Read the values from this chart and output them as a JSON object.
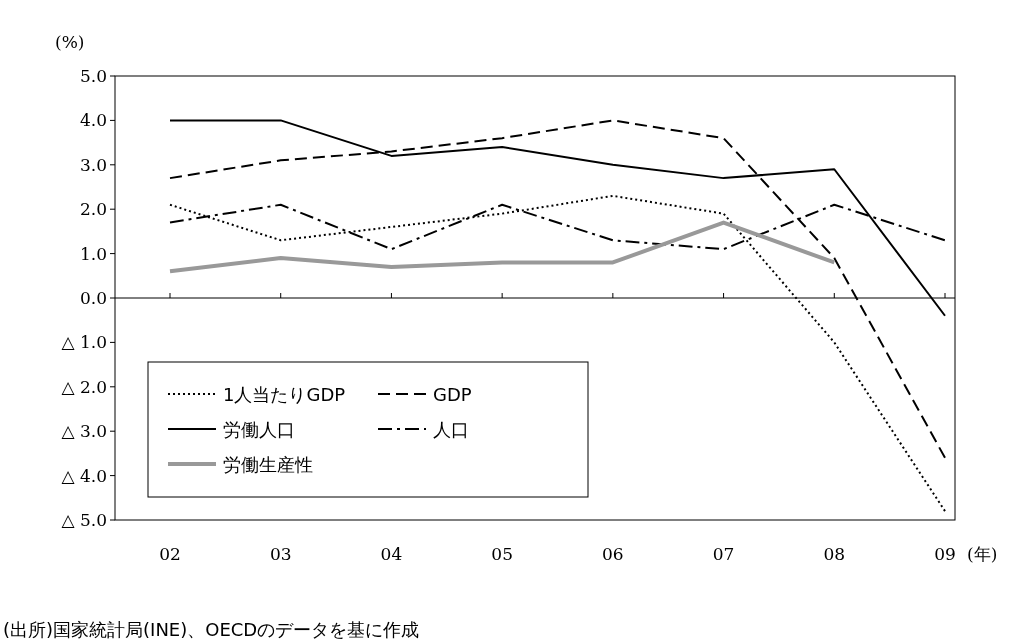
{
  "chart_data": {
    "type": "line",
    "ylabel": "(%)",
    "xlabel": "(年)",
    "categories": [
      "02",
      "03",
      "04",
      "05",
      "06",
      "07",
      "08",
      "09"
    ],
    "ylim": [
      -5,
      5
    ],
    "yticks": [
      {
        "value": 5,
        "label": "5.0"
      },
      {
        "value": 4,
        "label": "4.0"
      },
      {
        "value": 3,
        "label": "3.0"
      },
      {
        "value": 2,
        "label": "2.0"
      },
      {
        "value": 1,
        "label": "1.0"
      },
      {
        "value": 0,
        "label": "0.0"
      },
      {
        "value": -1,
        "label": "△ 1.0"
      },
      {
        "value": -2,
        "label": "△ 2.0"
      },
      {
        "value": -3,
        "label": "△ 3.0"
      },
      {
        "value": -4,
        "label": "△ 4.0"
      },
      {
        "value": -5,
        "label": "△ 5.0"
      }
    ],
    "legend": "bottom left",
    "marker": "none",
    "series": [
      {
        "name": "1人当たりGDP",
        "color": "#000000",
        "line_style": "dotted",
        "values": [
          2.1,
          1.3,
          1.6,
          1.9,
          2.3,
          1.9,
          -1.0,
          -4.8
        ]
      },
      {
        "name": "GDP",
        "color": "#000000",
        "line_style": "dashed",
        "values": [
          2.7,
          3.1,
          3.3,
          3.6,
          4.0,
          3.6,
          0.9,
          -3.6
        ]
      },
      {
        "name": "労働人口",
        "color": "#000000",
        "line_style": "solid",
        "values": [
          4.0,
          4.0,
          3.2,
          3.4,
          3.0,
          2.7,
          2.9,
          -0.4
        ]
      },
      {
        "name": "人口",
        "color": "#000000",
        "line_style": "dashdot",
        "values": [
          1.7,
          2.1,
          1.1,
          2.1,
          1.3,
          1.1,
          2.1,
          1.3
        ]
      },
      {
        "name": "労働生産性",
        "color": "#999999",
        "line_style": "solid",
        "values": [
          0.6,
          0.9,
          0.7,
          0.8,
          0.8,
          1.7,
          0.8,
          null
        ]
      }
    ],
    "annotations": [
      "(出所)国家統計局(INE)、OECDのデータを基に作成"
    ]
  }
}
